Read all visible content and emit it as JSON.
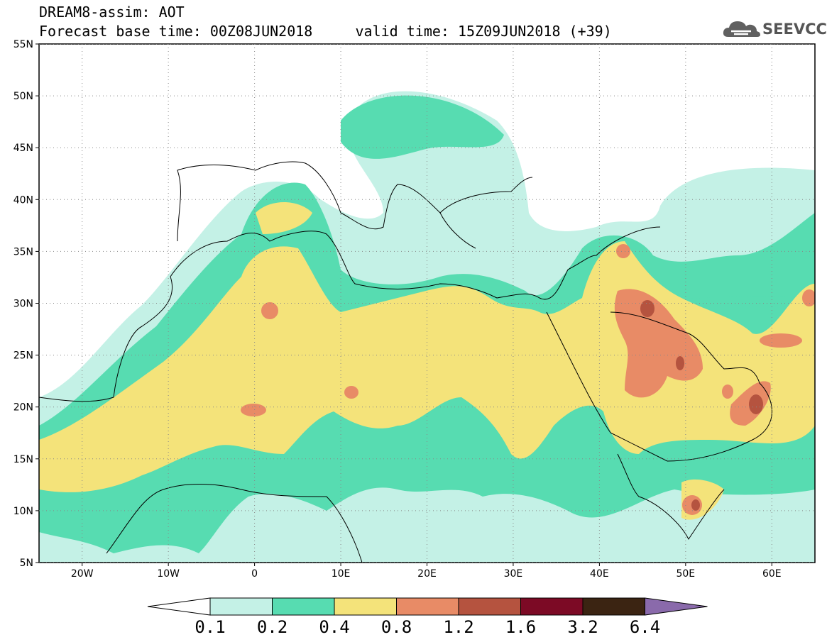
{
  "header": {
    "title_line1": "DREAM8-assim: AOT",
    "title_line2": "Forecast base time: 00Z08JUN2018     valid time: 15Z09JUN2018 (+39)"
  },
  "logo": {
    "text": "SEEVCCC",
    "icon": "cloud-icon"
  },
  "map": {
    "lon_range": [
      -25,
      65
    ],
    "lat_range": [
      5,
      55
    ],
    "lat_ticks": [
      "55N",
      "50N",
      "45N",
      "40N",
      "35N",
      "30N",
      "25N",
      "20N",
      "15N",
      "10N",
      "5N"
    ],
    "lat_tick_values": [
      55,
      50,
      45,
      40,
      35,
      30,
      25,
      20,
      15,
      10,
      5
    ],
    "lon_ticks": [
      "20W",
      "10W",
      "0",
      "10E",
      "20E",
      "30E",
      "40E",
      "50E",
      "60E"
    ],
    "lon_tick_values": [
      -20,
      -10,
      0,
      10,
      20,
      30,
      40,
      50,
      60
    ],
    "grid": "dotted"
  },
  "colorbar": {
    "labels": [
      "0.1",
      "0.2",
      "0.4",
      "0.8",
      "1.2",
      "1.6",
      "3.2",
      "6.4"
    ],
    "colors": [
      "#ffffff",
      "#c4f1e6",
      "#57dcb1",
      "#f4e37a",
      "#e88b66",
      "#b5533f",
      "#7c0a25",
      "#3b2412",
      "#8a6aab"
    ]
  }
}
